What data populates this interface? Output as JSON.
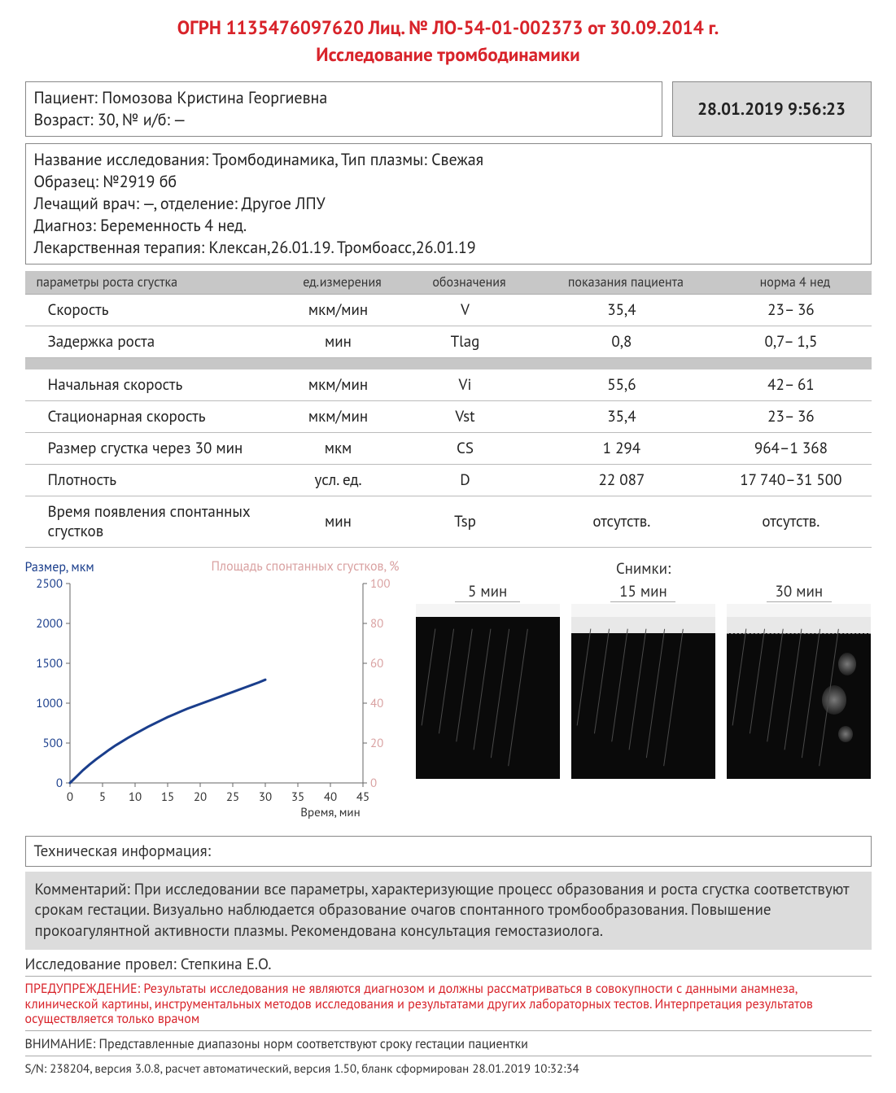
{
  "header_top": "ОГРН 1135476097620 Лиц. № ЛО-54-01-002373 от 30.09.2014 г.",
  "title": "Исследование тромбодинамики",
  "patient": {
    "line1": "Пациент: Помозова Кристина Георгиевна",
    "line2": "Возраст: 30, № и/б: —"
  },
  "datetime": "28.01.2019 9:56:23",
  "info": {
    "l1": "Название исследования: Тромбодинамика, Тип плазмы: Свежая",
    "l2": "Образец: №2919 бб",
    "l3": "Лечащий врач: —, отделение: Другое ЛПУ",
    "l4": "Диагноз: Беременность 4 нед.",
    "l5": "Лекарственная терапия: Клексан,26.01.19. Тромбоасс,26.01.19"
  },
  "table": {
    "headers": {
      "param": "параметры роста сгустка",
      "unit": "ед.измерения",
      "sym": "обозначения",
      "val": "показания пациента",
      "norm": "норма 4 нед"
    },
    "rows_a": [
      {
        "param": "Скорость",
        "unit": "мкм/мин",
        "sym": "V",
        "val": "35,4",
        "norm": "23– 36"
      },
      {
        "param": "Задержка роста",
        "unit": "мин",
        "sym": "Tlag",
        "val": "0,8",
        "norm": "0,7– 1,5"
      }
    ],
    "rows_b": [
      {
        "param": "Начальная скорость",
        "unit": "мкм/мин",
        "sym": "Vi",
        "val": "55,6",
        "norm": "42– 61"
      },
      {
        "param": "Стационарная скорость",
        "unit": "мкм/мин",
        "sym": "Vst",
        "val": "35,4",
        "norm": "23– 36"
      },
      {
        "param": "Размер сгустка через 30 мин",
        "unit": "мкм",
        "sym": "CS",
        "val": "1 294",
        "norm": "964–1 368"
      },
      {
        "param": "Плотность",
        "unit": "усл. ед.",
        "sym": "D",
        "val": "22 087",
        "norm": "17 740–31 500"
      },
      {
        "param": "Время появления спонтанных сгустков",
        "unit": "мин",
        "sym": "Tsp",
        "val": "отсутств.",
        "norm": "отсутств."
      }
    ]
  },
  "chart": {
    "y1_label": "Размер, мкм",
    "y2_label": "Площадь спонтанных сгустков, %",
    "x_label": "Время, мин",
    "x_ticks": [
      0,
      5,
      10,
      15,
      20,
      25,
      30,
      35,
      40,
      45
    ],
    "y1_ticks": [
      0,
      500,
      1000,
      1500,
      2000,
      2500
    ],
    "y2_ticks": [
      0,
      20,
      40,
      60,
      80,
      100
    ],
    "xlim": [
      0,
      45
    ],
    "y1lim": [
      0,
      2500
    ],
    "y2lim": [
      0,
      100
    ],
    "line_color": "#1a3e8c",
    "line_width": 3,
    "axis_color": "#666",
    "tick_color": "#1a3e8c",
    "y2_tick_color": "#d9a1a1",
    "series": [
      [
        0,
        0
      ],
      [
        1,
        80
      ],
      [
        2,
        160
      ],
      [
        3,
        230
      ],
      [
        4,
        295
      ],
      [
        5,
        355
      ],
      [
        6,
        415
      ],
      [
        7,
        470
      ],
      [
        8,
        520
      ],
      [
        9,
        570
      ],
      [
        10,
        615
      ],
      [
        11,
        660
      ],
      [
        12,
        705
      ],
      [
        13,
        745
      ],
      [
        14,
        785
      ],
      [
        15,
        825
      ],
      [
        16,
        860
      ],
      [
        17,
        895
      ],
      [
        18,
        930
      ],
      [
        19,
        960
      ],
      [
        20,
        990
      ],
      [
        21,
        1020
      ],
      [
        22,
        1050
      ],
      [
        23,
        1080
      ],
      [
        24,
        1110
      ],
      [
        25,
        1140
      ],
      [
        26,
        1170
      ],
      [
        27,
        1200
      ],
      [
        28,
        1230
      ],
      [
        29,
        1260
      ],
      [
        30,
        1294
      ]
    ]
  },
  "snapshots": {
    "title": "Снимки:",
    "labels": [
      "5 мин",
      "15 мин",
      "30 мин"
    ]
  },
  "tech_label": "Техническая информация:",
  "comment": "Комментарий: При исследовании все параметры, характеризующие процесс образования и роста сгустка соответствуют срокам гестации. Визуально наблюдается образование очагов спонтанного тромбообразования. Повышение прокоагулянтной активности плазмы. Рекомендована консультация гемостазиолога.",
  "conducted": "Исследование провел: Степкина Е.О.",
  "warning": "ПРЕДУПРЕЖДЕНИЕ: Результаты исследования не являются диагнозом и должны рассматриваться в совокупности с данными анамнеза, клинической картины, инструментальных методов исследования и результатами других лабораторных тестов. Интерпретация результатов осуществляется только врачом",
  "attention": "ВНИМАНИЕ: Представленные диапазоны норм соответствуют сроку гестации пациентки",
  "sn": "S/N: 238204, версия 3.0.8, расчет автоматический, версия 1.50, бланк сформирован 28.01.2019 10:32:34"
}
